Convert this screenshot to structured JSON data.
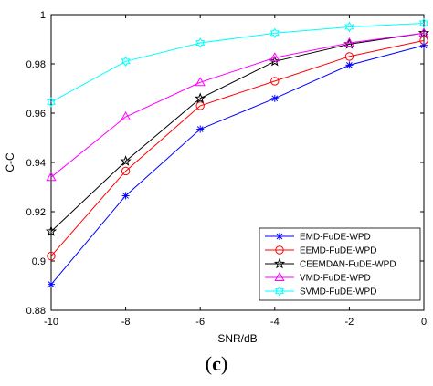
{
  "caption": {
    "open": "(",
    "letter": "c",
    "close": ")"
  },
  "chart_data": {
    "type": "line",
    "xlabel": "SNR/dB",
    "ylabel": "C-C",
    "xlim": [
      -10,
      0
    ],
    "ylim": [
      0.88,
      1
    ],
    "xticks": [
      -10,
      -8,
      -6,
      -4,
      -2,
      0
    ],
    "yticks": [
      0.88,
      0.9,
      0.92,
      0.94,
      0.96,
      0.98,
      1
    ],
    "ytick_labels": [
      "0.88",
      "0.9",
      "0.92",
      "0.94",
      "0.96",
      "0.98",
      "1"
    ],
    "grid": false,
    "legend_position": "bottom-right",
    "x": [
      -10,
      -8,
      -6,
      -4,
      -2,
      0
    ],
    "series": [
      {
        "name": "EMD-FuDE-WPD",
        "color": "#0000ff",
        "marker": "asterisk",
        "values": [
          0.8905,
          0.9265,
          0.9535,
          0.966,
          0.9795,
          0.9875
        ]
      },
      {
        "name": "EEMD-FuDE-WPD",
        "color": "#ff0000",
        "marker": "circle",
        "values": [
          0.902,
          0.9365,
          0.963,
          0.973,
          0.983,
          0.9895
        ]
      },
      {
        "name": "CEEMDAN-FuDE-WPD",
        "color": "#000000",
        "marker": "star",
        "values": [
          0.912,
          0.9405,
          0.966,
          0.981,
          0.988,
          0.9925
        ]
      },
      {
        "name": "VMD-FuDE-WPD",
        "color": "#ff00ff",
        "marker": "triangle",
        "values": [
          0.934,
          0.9585,
          0.9725,
          0.9825,
          0.9885,
          0.9925
        ]
      },
      {
        "name": "SVMD-FuDE-WPD",
        "color": "#00ffff",
        "marker": "hexagram",
        "values": [
          0.9645,
          0.981,
          0.9885,
          0.9925,
          0.995,
          0.9965
        ]
      }
    ]
  }
}
